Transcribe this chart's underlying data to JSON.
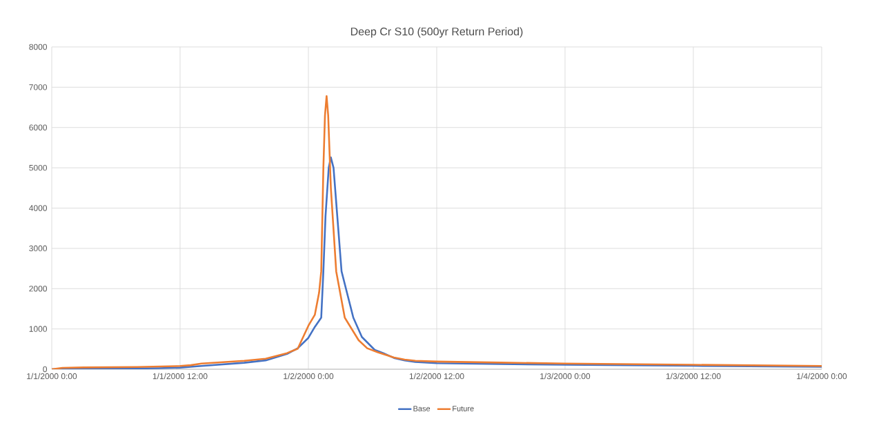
{
  "chart_data": {
    "type": "line",
    "title": "Deep Cr S10 (500yr Return Period)",
    "series": [
      {
        "name": "Base",
        "color": "#4472c4",
        "x": [
          "2000-01-01T00:00",
          "2000-01-01T02:00",
          "2000-01-01T06:00",
          "2000-01-01T10:00",
          "2000-01-01T12:00",
          "2000-01-01T14:00",
          "2000-01-01T18:00",
          "2000-01-01T20:00",
          "2000-01-01T22:00",
          "2000-01-01T23:00",
          "2000-01-02T00:00",
          "2000-01-02T00:36",
          "2000-01-02T01:12",
          "2000-01-02T01:24",
          "2000-01-02T01:36",
          "2000-01-02T01:54",
          "2000-01-02T02:06",
          "2000-01-02T02:21",
          "2000-01-02T02:42",
          "2000-01-02T03:06",
          "2000-01-02T04:12",
          "2000-01-02T05:00",
          "2000-01-02T06:12",
          "2000-01-02T07:00",
          "2000-01-02T08:00",
          "2000-01-02T09:00",
          "2000-01-02T10:00",
          "2000-01-02T12:00",
          "2000-01-02T18:00",
          "2000-01-03T00:00",
          "2000-01-03T12:00",
          "2000-01-04T00:00"
        ],
        "values": [
          0,
          10,
          15,
          25,
          40,
          80,
          160,
          220,
          380,
          520,
          780,
          1050,
          1280,
          2430,
          3800,
          5000,
          5257,
          5000,
          3800,
          2430,
          1280,
          800,
          480,
          400,
          280,
          220,
          180,
          150,
          130,
          110,
          85,
          60
        ]
      },
      {
        "name": "Future",
        "color": "#ed7d31",
        "x": [
          "2000-01-01T00:00",
          "2000-01-01T01:00",
          "2000-01-01T03:00",
          "2000-01-01T08:00",
          "2000-01-01T12:00",
          "2000-01-01T13:00",
          "2000-01-01T14:00",
          "2000-01-01T18:00",
          "2000-01-01T20:00",
          "2000-01-01T21:00",
          "2000-01-01T22:00",
          "2000-01-01T23:00",
          "2000-01-02T00:00",
          "2000-01-02T00:36",
          "2000-01-02T01:00",
          "2000-01-02T01:12",
          "2000-01-02T01:24",
          "2000-01-02T01:33",
          "2000-01-02T01:42",
          "2000-01-02T01:51",
          "2000-01-02T02:06",
          "2000-01-02T02:36",
          "2000-01-02T03:24",
          "2000-01-02T04:42",
          "2000-01-02T05:30",
          "2000-01-02T06:30",
          "2000-01-02T08:00",
          "2000-01-02T09:00",
          "2000-01-02T10:00",
          "2000-01-02T12:00",
          "2000-01-02T18:00",
          "2000-01-03T00:00",
          "2000-01-03T12:00",
          "2000-01-04T00:00"
        ],
        "values": [
          0,
          35,
          45,
          55,
          80,
          100,
          140,
          210,
          260,
          330,
          400,
          510,
          1080,
          1350,
          1900,
          2430,
          5000,
          6300,
          6780,
          6300,
          4500,
          2430,
          1280,
          720,
          520,
          420,
          290,
          240,
          210,
          190,
          165,
          140,
          110,
          80
        ]
      }
    ],
    "xlim": [
      "2000-01-01T00:00",
      "2000-01-04T00:00"
    ],
    "xticks": [
      {
        "value": "2000-01-01T00:00",
        "label": "1/1/2000 0:00"
      },
      {
        "value": "2000-01-01T12:00",
        "label": "1/1/2000 12:00"
      },
      {
        "value": "2000-01-02T00:00",
        "label": "1/2/2000 0:00"
      },
      {
        "value": "2000-01-02T12:00",
        "label": "1/2/2000 12:00"
      },
      {
        "value": "2000-01-03T00:00",
        "label": "1/3/2000 0:00"
      },
      {
        "value": "2000-01-03T12:00",
        "label": "1/3/2000 12:00"
      },
      {
        "value": "2000-01-04T00:00",
        "label": "1/4/2000 0:00"
      }
    ],
    "ylim": [
      0,
      8000
    ],
    "yticks": [
      0,
      1000,
      2000,
      3000,
      4000,
      5000,
      6000,
      7000,
      8000
    ],
    "grid": true,
    "legend": "bottom",
    "marker": "none",
    "line_style": "solid"
  }
}
